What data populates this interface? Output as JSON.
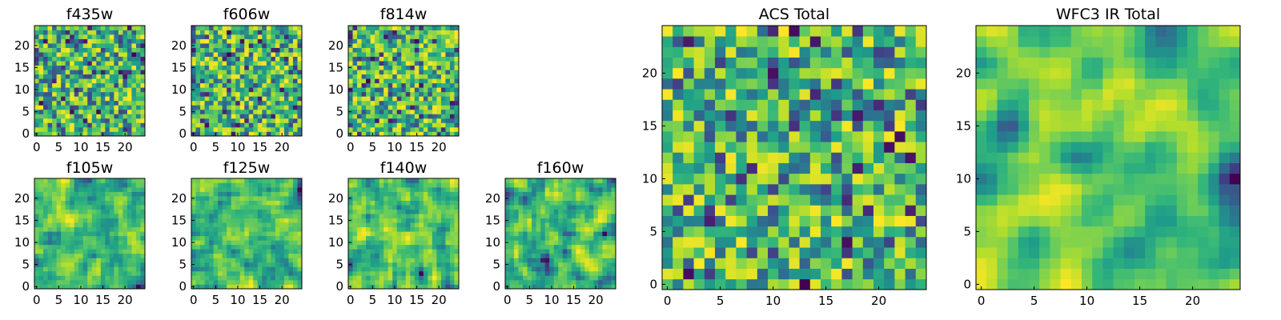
{
  "figure": {
    "background": "#ffffff"
  },
  "chart_data": [
    {
      "type": "heatmap",
      "title": "f435w",
      "grid_size": 25,
      "xticks": [
        0,
        5,
        10,
        15,
        20
      ],
      "yticks": [
        0,
        5,
        10,
        15,
        20
      ],
      "xlim": [
        -0.5,
        24.5
      ],
      "ylim": [
        -0.5,
        24.5
      ],
      "colormap": "viridis",
      "seed": 11,
      "smooth": 0
    },
    {
      "type": "heatmap",
      "title": "f606w",
      "grid_size": 25,
      "xticks": [
        0,
        5,
        10,
        15,
        20
      ],
      "yticks": [
        0,
        5,
        10,
        15,
        20
      ],
      "xlim": [
        -0.5,
        24.5
      ],
      "ylim": [
        -0.5,
        24.5
      ],
      "colormap": "viridis",
      "seed": 23,
      "smooth": 0
    },
    {
      "type": "heatmap",
      "title": "f814w",
      "grid_size": 25,
      "xticks": [
        0,
        5,
        10,
        15,
        20
      ],
      "yticks": [
        0,
        5,
        10,
        15,
        20
      ],
      "xlim": [
        -0.5,
        24.5
      ],
      "ylim": [
        -0.5,
        24.5
      ],
      "colormap": "viridis",
      "seed": 37,
      "smooth": 0
    },
    {
      "type": "heatmap",
      "title": "f105w",
      "grid_size": 25,
      "xticks": [
        0,
        5,
        10,
        15,
        20
      ],
      "yticks": [
        0,
        5,
        10,
        15,
        20
      ],
      "xlim": [
        -0.5,
        24.5
      ],
      "ylim": [
        -0.5,
        24.5
      ],
      "colormap": "viridis",
      "seed": 41,
      "smooth": 1
    },
    {
      "type": "heatmap",
      "title": "f125w",
      "grid_size": 25,
      "xticks": [
        0,
        5,
        10,
        15,
        20
      ],
      "yticks": [
        0,
        5,
        10,
        15,
        20
      ],
      "xlim": [
        -0.5,
        24.5
      ],
      "ylim": [
        -0.5,
        24.5
      ],
      "colormap": "viridis",
      "seed": 53,
      "smooth": 1
    },
    {
      "type": "heatmap",
      "title": "f140w",
      "grid_size": 25,
      "xticks": [
        0,
        5,
        10,
        15,
        20
      ],
      "yticks": [
        0,
        5,
        10,
        15,
        20
      ],
      "xlim": [
        -0.5,
        24.5
      ],
      "ylim": [
        -0.5,
        24.5
      ],
      "colormap": "viridis",
      "seed": 67,
      "smooth": 1
    },
    {
      "type": "heatmap",
      "title": "f160w",
      "grid_size": 25,
      "xticks": [
        0,
        5,
        10,
        15,
        20
      ],
      "yticks": [
        0,
        5,
        10,
        15,
        20
      ],
      "xlim": [
        -0.5,
        24.5
      ],
      "ylim": [
        -0.5,
        24.5
      ],
      "colormap": "viridis",
      "seed": 79,
      "smooth": 1
    },
    {
      "type": "heatmap",
      "title": "ACS Total",
      "grid_size": 25,
      "xticks": [
        0,
        5,
        10,
        15,
        20
      ],
      "yticks": [
        0,
        5,
        10,
        15,
        20
      ],
      "xlim": [
        -0.5,
        24.5
      ],
      "ylim": [
        -0.5,
        24.5
      ],
      "colormap": "viridis",
      "seed": 97,
      "smooth": 0
    },
    {
      "type": "heatmap",
      "title": "WFC3 IR Total",
      "grid_size": 25,
      "xticks": [
        0,
        5,
        10,
        15,
        20
      ],
      "yticks": [
        0,
        5,
        10,
        15,
        20
      ],
      "xlim": [
        -0.5,
        24.5
      ],
      "ylim": [
        -0.5,
        24.5
      ],
      "colormap": "viridis",
      "seed": 113,
      "smooth": 2
    }
  ]
}
